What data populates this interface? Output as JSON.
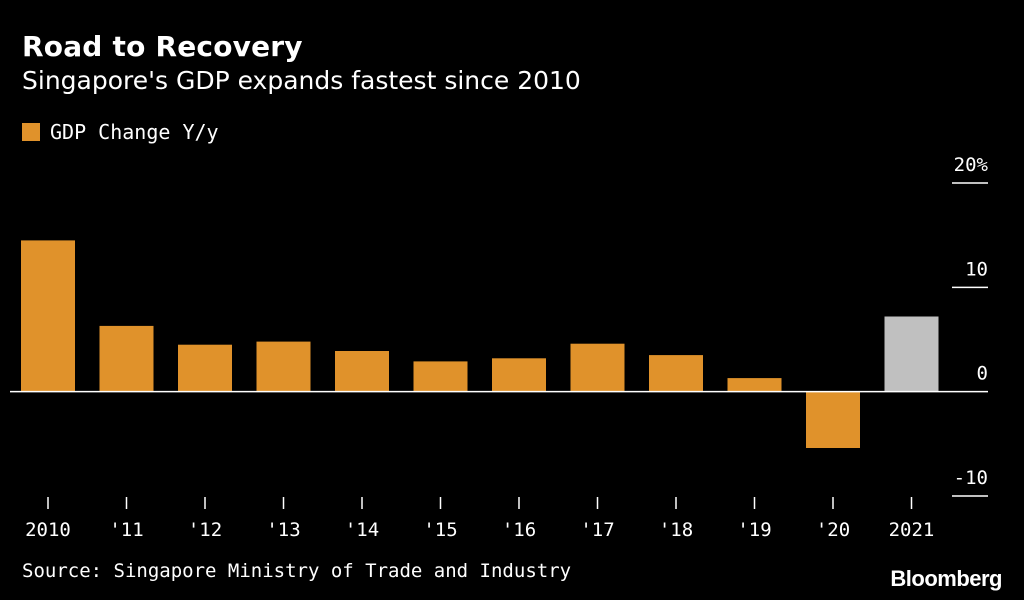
{
  "header": {
    "title": "Road to Recovery",
    "subtitle": "Singapore's GDP expands fastest since 2010"
  },
  "legend": {
    "label": "GDP Change Y/y"
  },
  "footer": {
    "source": "Source: Singapore Ministry of Trade and Industry",
    "brand": "Bloomberg"
  },
  "colors": {
    "background": "#000000",
    "bar": "#e0922b",
    "highlight_bar": "#c0c0c0",
    "axis": "#ffffff",
    "text": "#ffffff"
  },
  "chart_data": {
    "type": "bar",
    "title": "Road to Recovery",
    "subtitle": "Singapore's GDP expands fastest since 2010",
    "categories": [
      "2010",
      "'11",
      "'12",
      "'13",
      "'14",
      "'15",
      "'16",
      "'17",
      "'18",
      "'19",
      "'20",
      "2021"
    ],
    "series": [
      {
        "name": "GDP Change Y/y",
        "values": [
          14.5,
          6.3,
          4.5,
          4.8,
          3.9,
          2.9,
          3.2,
          4.6,
          3.5,
          1.3,
          -5.4,
          7.2
        ]
      }
    ],
    "highlight_index": 11,
    "ylim": [
      -10,
      20
    ],
    "yticks": [
      20,
      10,
      0,
      -10
    ],
    "ytick_labels": [
      "20%",
      "10",
      "0",
      "-10"
    ],
    "xlabel": "",
    "ylabel": "",
    "legend_position": "top-left",
    "grid": false
  }
}
